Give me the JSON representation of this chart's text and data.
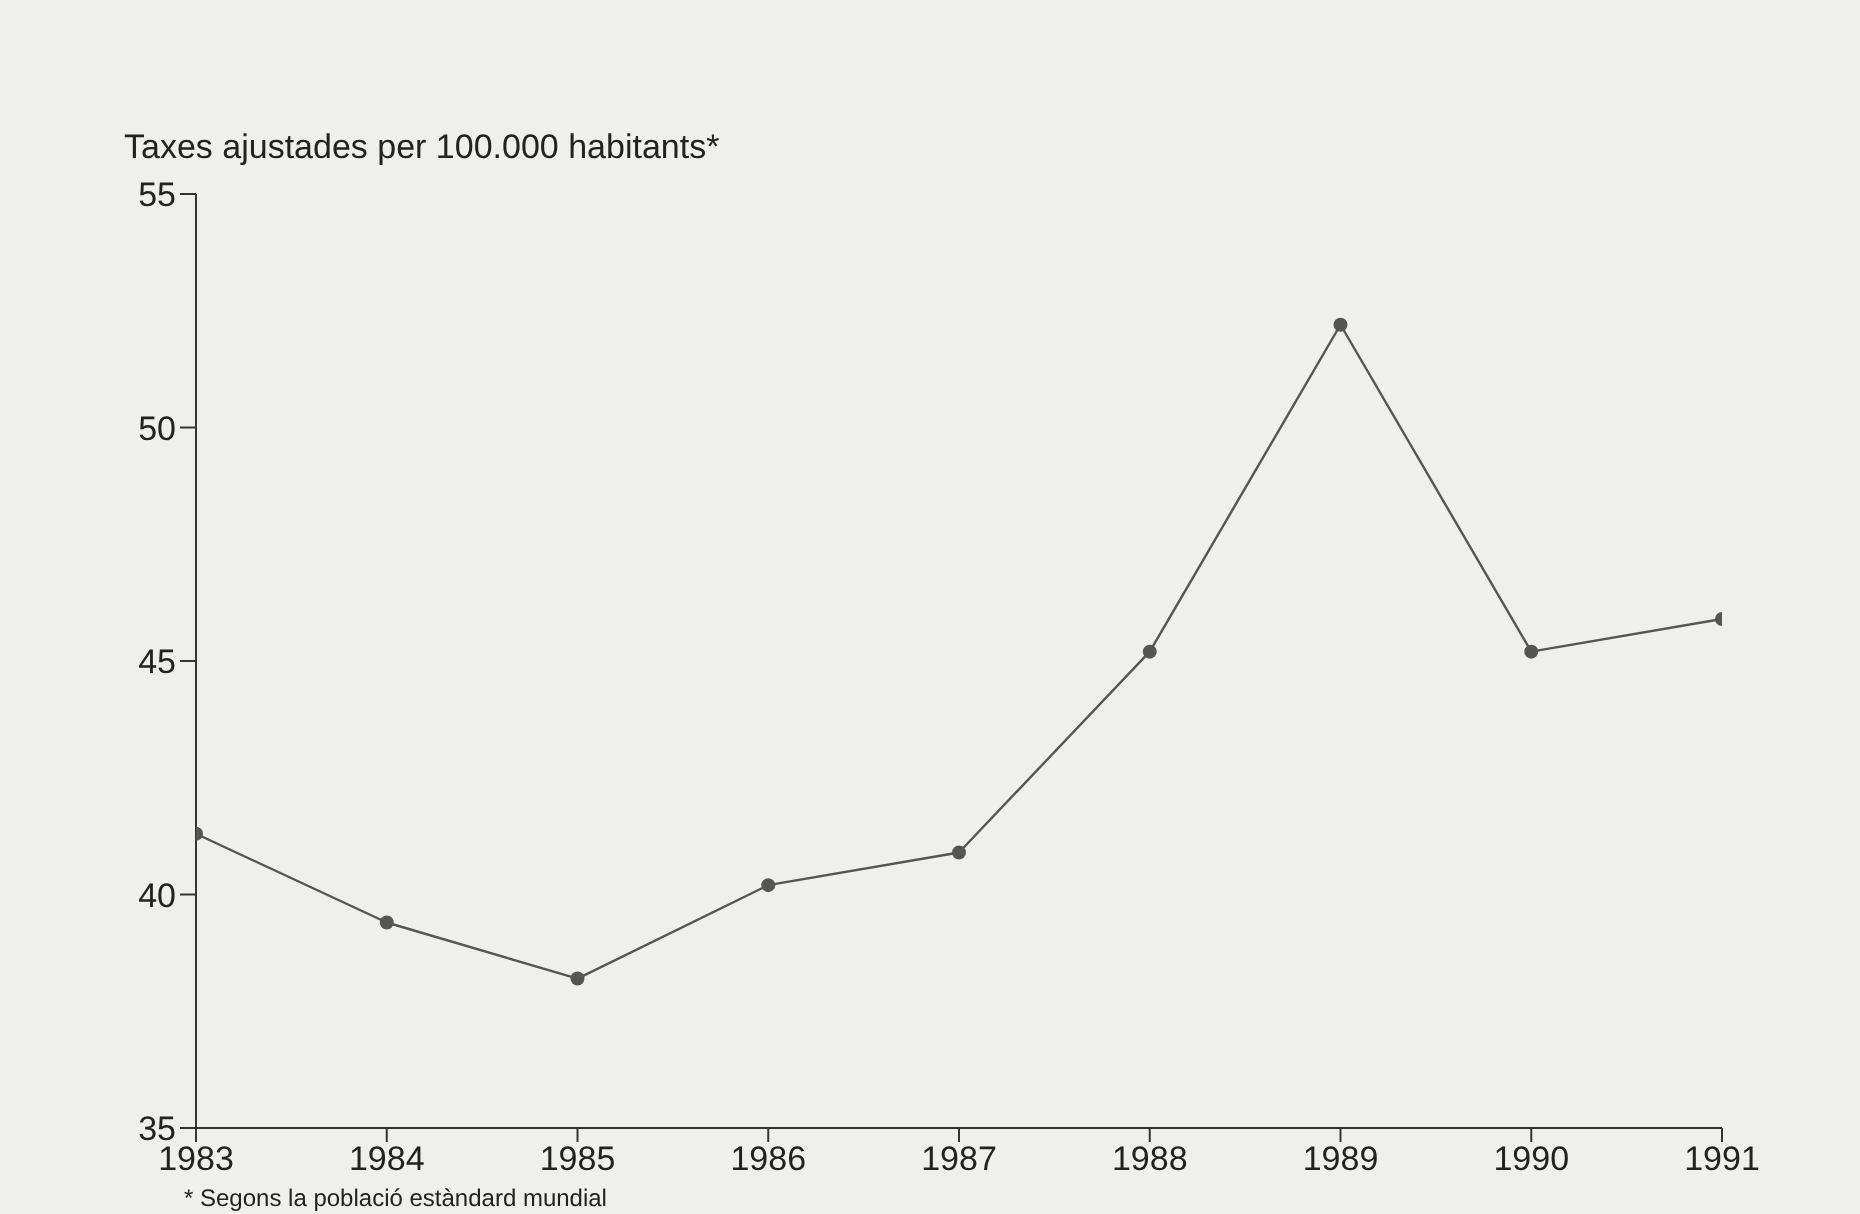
{
  "chart_data": {
    "type": "line",
    "title": "Taxes ajustades per 100.000 habitants*",
    "categories": [
      "1983",
      "1984",
      "1985",
      "1986",
      "1987",
      "1988",
      "1989",
      "1990",
      "1991"
    ],
    "series": [
      {
        "color": "#555555",
        "values": [
          41.3,
          39.4,
          38.2,
          40.2,
          40.9,
          45.2,
          52.2,
          45.2,
          45.9
        ]
      }
    ],
    "ylim": [
      35,
      55
    ],
    "yticks": [
      35,
      40,
      45,
      50,
      55
    ],
    "grid": false,
    "legend": false,
    "marker": "circle",
    "line_style": "solid",
    "annotations": [
      "* Segons la població estàndard mundial"
    ]
  }
}
